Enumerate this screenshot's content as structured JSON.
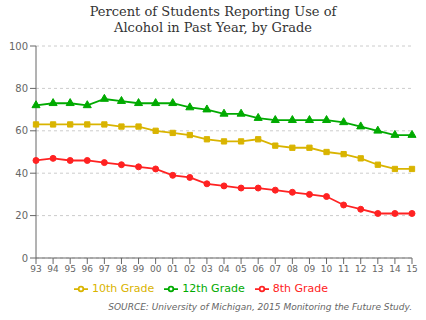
{
  "chart_data": {
    "type": "line",
    "title": "Percent of Students Reporting Use of\nAlcohol in Past Year, by Grade",
    "categories": [
      "93",
      "94",
      "95",
      "96",
      "97",
      "98",
      "99",
      "00",
      "01",
      "02",
      "03",
      "04",
      "05",
      "06",
      "07",
      "08",
      "09",
      "10",
      "11",
      "12",
      "13",
      "14",
      "15"
    ],
    "series": [
      {
        "name": "8th Grade",
        "color": "#FF2222",
        "marker": "circle",
        "values": [
          46,
          47,
          46,
          46,
          45,
          44,
          43,
          42,
          39,
          38,
          35,
          34,
          33,
          33,
          32,
          31,
          30,
          29,
          25,
          23,
          21,
          21,
          21
        ]
      },
      {
        "name": "10th Grade",
        "color": "#D9B400",
        "marker": "square",
        "values": [
          63,
          63,
          63,
          63,
          63,
          62,
          62,
          60,
          59,
          58,
          56,
          55,
          55,
          56,
          53,
          52,
          52,
          50,
          49,
          47,
          44,
          42,
          42
        ]
      },
      {
        "name": "12th Grade",
        "color": "#00AA00",
        "marker": "triangle",
        "values": [
          72,
          73,
          73,
          72,
          75,
          74,
          73,
          73,
          73,
          71,
          70,
          68,
          68,
          66,
          65,
          65,
          65,
          65,
          64,
          62,
          60,
          58,
          58
        ]
      }
    ],
    "ylim": [
      0,
      100
    ],
    "yticks": [
      0,
      20,
      40,
      60,
      80,
      100
    ],
    "grid": true,
    "legend": "bottom",
    "annotations": [
      "SOURCE: University of Michigan, 2015 Monitoring the Future Study."
    ]
  }
}
